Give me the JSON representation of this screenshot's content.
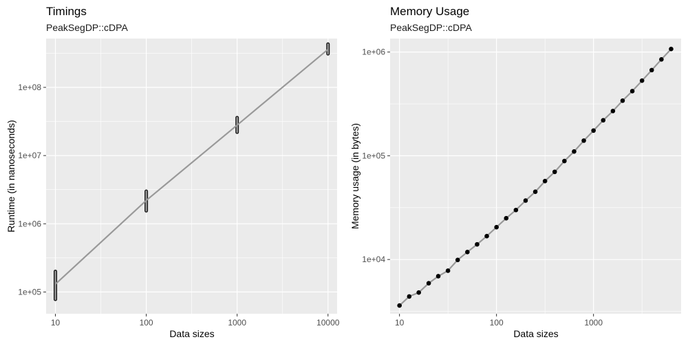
{
  "chart_data": [
    {
      "type": "line",
      "title": "Timings",
      "subtitle": "PeakSegDP::cDPA",
      "xlabel": "Data sizes",
      "ylabel": "Runtime (in nanoseconds)",
      "x_scale": "log10",
      "y_scale": "log10",
      "xlim": [
        7.9,
        12600
      ],
      "ylim": [
        48000,
        520000000
      ],
      "x_ticks": [
        10,
        100,
        1000,
        10000
      ],
      "x_tick_labels": [
        "10",
        "100",
        "1000",
        "10000"
      ],
      "y_ticks": [
        100000,
        1000000,
        10000000,
        100000000
      ],
      "y_tick_labels": [
        "1e+05",
        "1e+06",
        "1e+07",
        "1e+08"
      ],
      "grid": true,
      "legend": "none",
      "series": [
        {
          "x": [
            10,
            100,
            1000,
            10000
          ],
          "y": [
            130000,
            2200000,
            28000000,
            360000000
          ],
          "y_min": [
            78000,
            1550000,
            22000000,
            310000000
          ],
          "y_max": [
            200000,
            3000000,
            36000000,
            430000000
          ]
        }
      ],
      "colors": {
        "line": "#999999",
        "marker": "#000000"
      }
    },
    {
      "type": "line",
      "title": "Memory Usage",
      "subtitle": "PeakSegDP::cDPA",
      "xlabel": "Data sizes",
      "ylabel": "Memory usage (in bytes)",
      "x_scale": "log10",
      "y_scale": "log10",
      "xlim": [
        8,
        8000
      ],
      "ylim": [
        3000,
        1350000
      ],
      "x_ticks": [
        10,
        100,
        1000
      ],
      "x_tick_labels": [
        "10",
        "100",
        "1000"
      ],
      "y_ticks": [
        10000,
        100000,
        1000000
      ],
      "y_tick_labels": [
        "1e+04",
        "1e+05",
        "1e+06"
      ],
      "grid": true,
      "legend": "none",
      "series": [
        {
          "x": [
            10,
            12.6,
            15.8,
            20,
            25.1,
            31.6,
            39.8,
            50.1,
            63.1,
            79.4,
            100,
            125.9,
            158.5,
            199.5,
            251.2,
            316.2,
            398.1,
            501.2,
            631,
            794.3,
            1000,
            1258.9,
            1584.9,
            1995.3,
            2511.9,
            3162.3,
            3981.1,
            5011.9,
            6309.6
          ],
          "y": [
            3600,
            4400,
            4800,
            5900,
            6900,
            7800,
            9900,
            11800,
            14000,
            16800,
            20500,
            25000,
            30000,
            37000,
            45000,
            57000,
            70000,
            89000,
            110000,
            140000,
            175000,
            220000,
            270000,
            340000,
            420000,
            530000,
            670000,
            850000,
            1070000
          ]
        }
      ],
      "colors": {
        "line": "#999999",
        "marker": "#000000"
      }
    }
  ]
}
